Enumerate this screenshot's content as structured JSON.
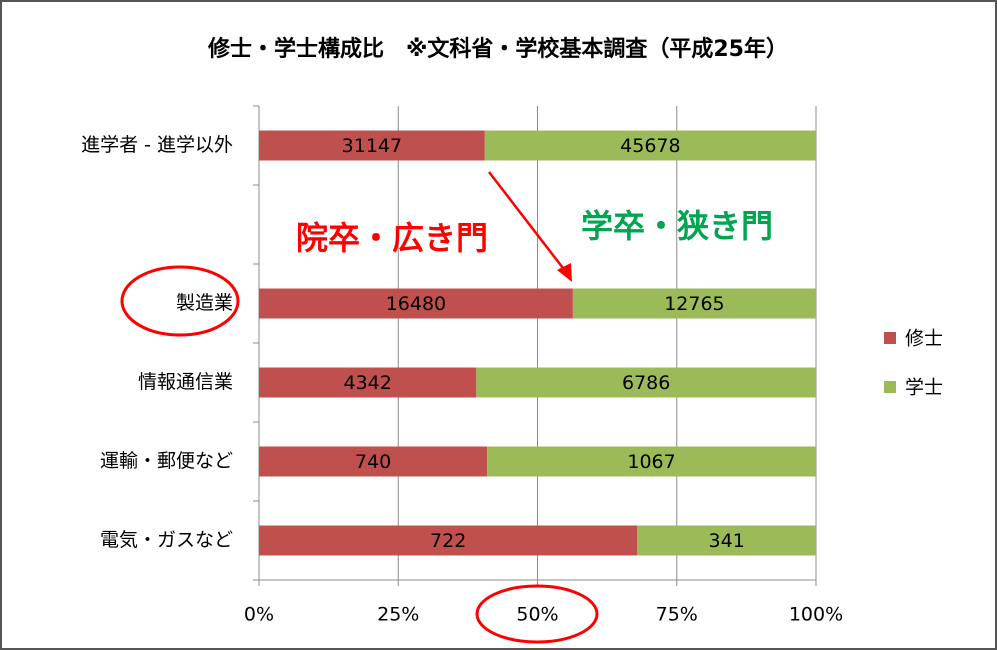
{
  "chart_data": {
    "type": "bar_stacked_percent",
    "orientation": "horizontal",
    "title": "修士・学士構成比　※文科省・学校基本調査（平成25年）",
    "categories": [
      "進学者 - 進学以外",
      null,
      "製造業",
      "情報通信業",
      "運輸・郵便など",
      "電気・ガスなど"
    ],
    "series": [
      {
        "name": "修士",
        "color": "#c0504d",
        "values": [
          31147,
          null,
          16480,
          4342,
          740,
          722
        ]
      },
      {
        "name": "学士",
        "color": "#9bbb59",
        "values": [
          45678,
          null,
          12765,
          6786,
          1067,
          341
        ]
      }
    ],
    "xlim": [
      0,
      100
    ],
    "xticks": [
      {
        "value": 0,
        "label": "0%"
      },
      {
        "value": 25,
        "label": "25%"
      },
      {
        "value": 50,
        "label": "50%"
      },
      {
        "value": 75,
        "label": "75%"
      },
      {
        "value": 100,
        "label": "100%"
      }
    ],
    "grid": true,
    "legend": "right",
    "annotations": [
      {
        "text": "院卒・広き門",
        "color": "#ff0000"
      },
      {
        "text": "学卒・狭き門",
        "color": "#00a550"
      }
    ]
  }
}
